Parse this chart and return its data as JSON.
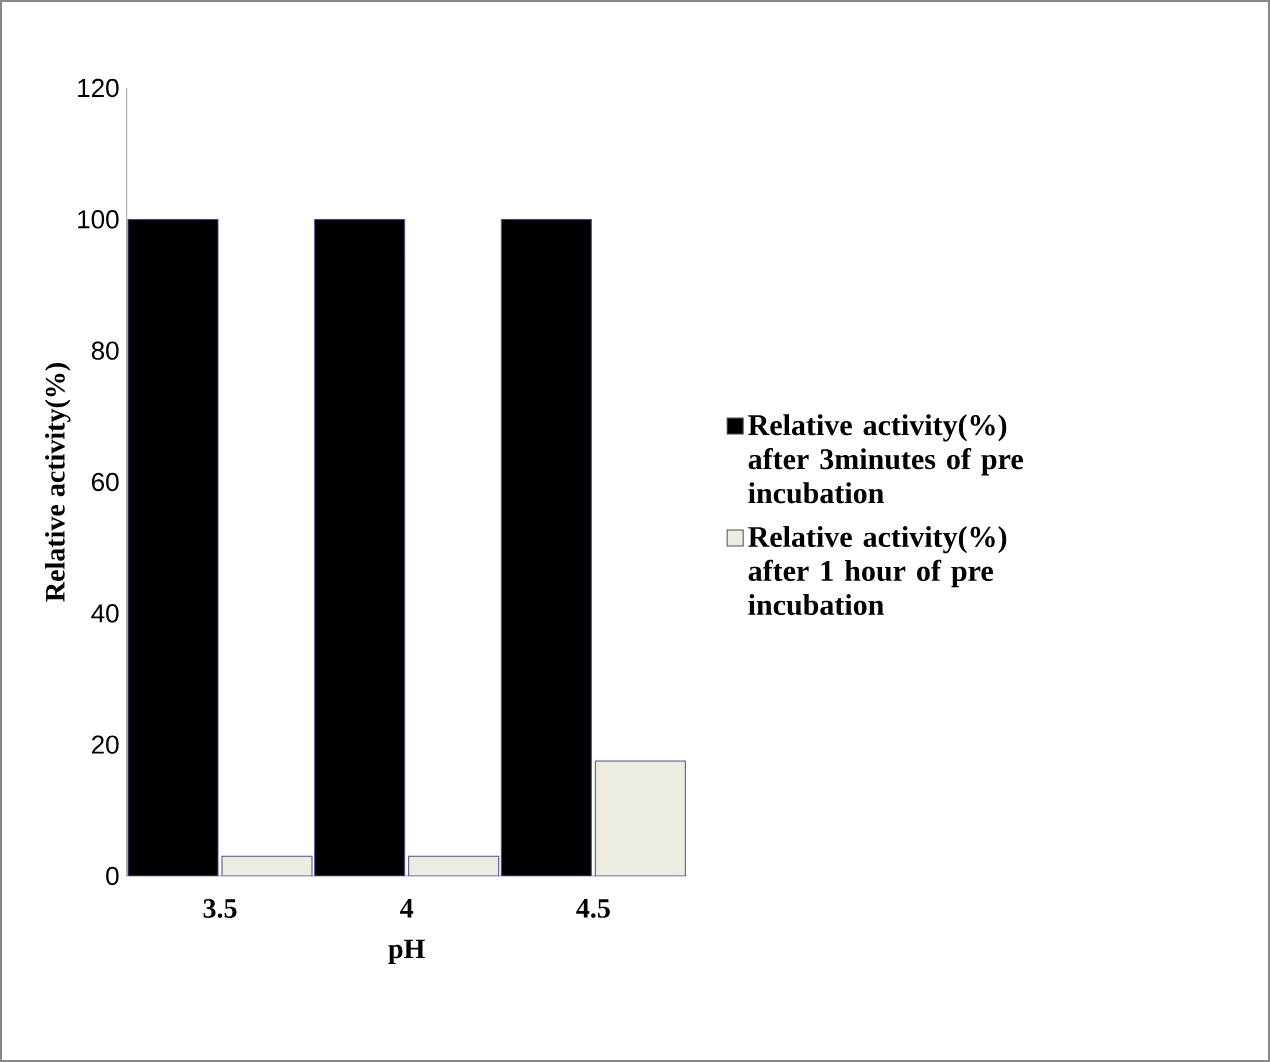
{
  "chart_data": {
    "type": "bar",
    "xlabel": "pH",
    "ylabel": "Relative activity(%)",
    "categories": [
      "3.5",
      "4",
      "4.5"
    ],
    "series": [
      {
        "name": "Relative activity(%) after 3minutes of pre incubation",
        "color": "#000000",
        "values": [
          100,
          100,
          100
        ]
      },
      {
        "name": "Relative activity(%) after 1 hour of pre incubation",
        "color": "#eeece1",
        "values": [
          3,
          3,
          17.5
        ]
      }
    ],
    "ylim": [
      0,
      120
    ],
    "yticks": [
      0,
      20,
      40,
      60,
      80,
      100,
      120
    ],
    "legend": "right",
    "grid": false
  }
}
